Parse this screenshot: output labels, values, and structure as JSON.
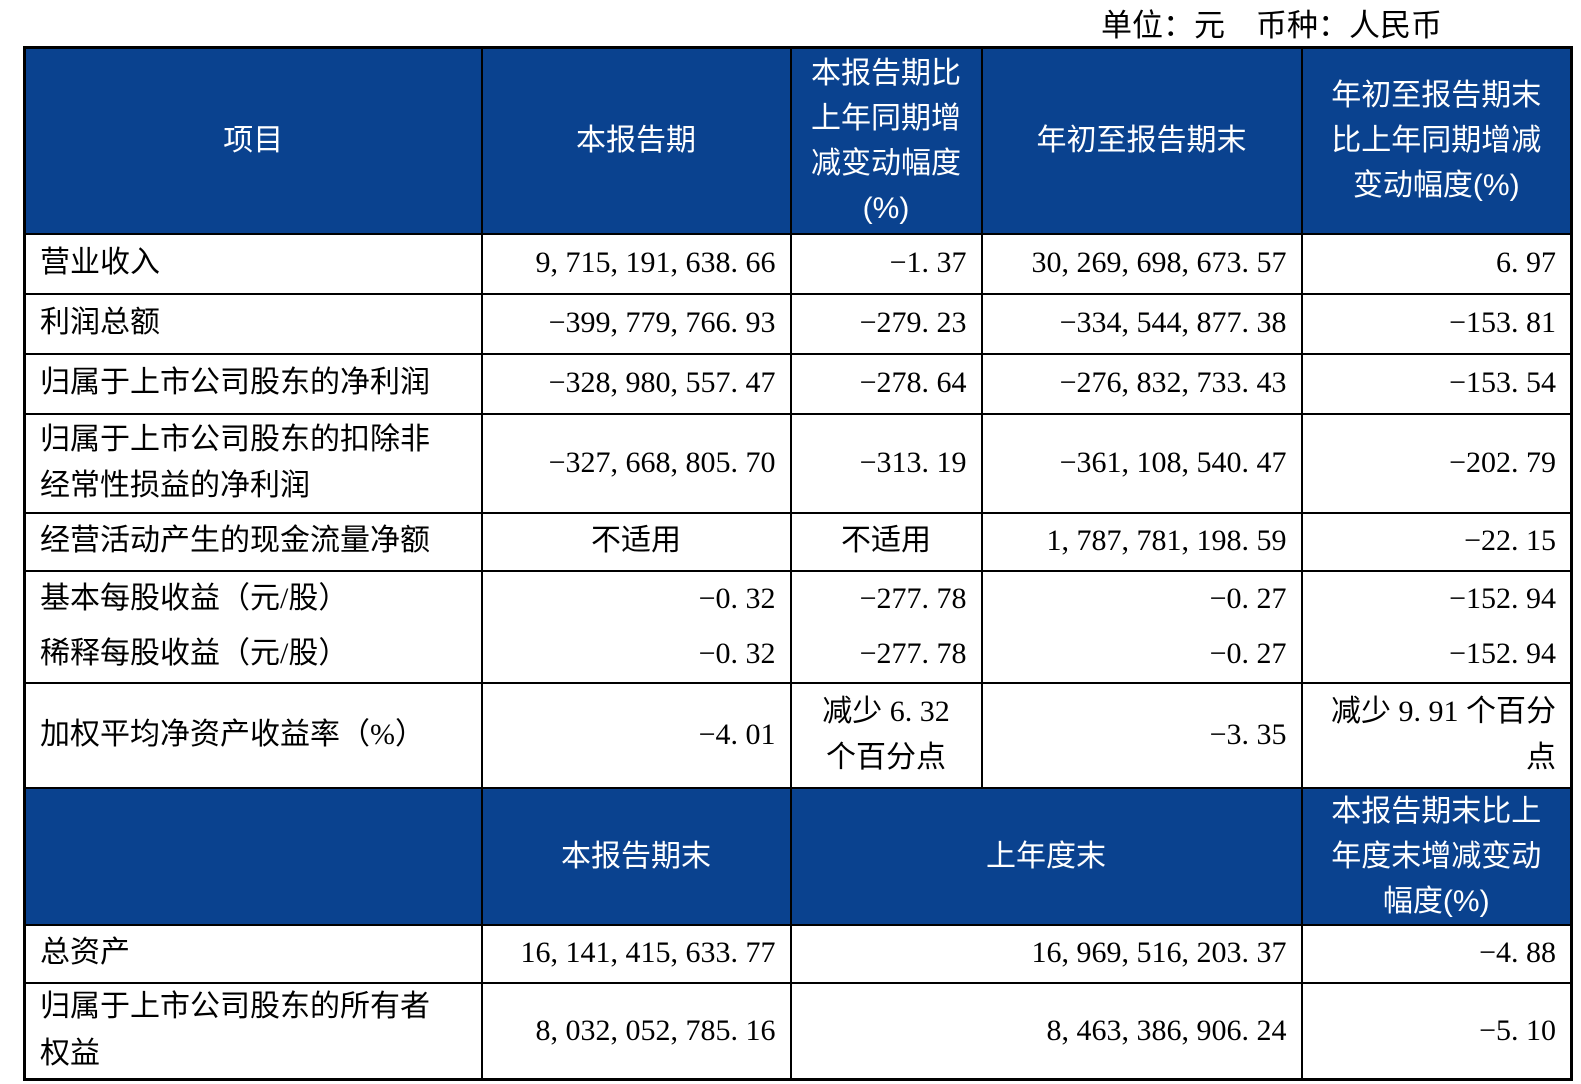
{
  "meta": {
    "unit_label": "单位：元　币种：人民币"
  },
  "colors": {
    "header_bg": "#0A428F",
    "header_text": "#FFFFFF",
    "border": "#000000",
    "body_text": "#000000",
    "page_bg": "#FFFFFF"
  },
  "table1": {
    "headers": {
      "item": "项目",
      "current_period": "本报告期",
      "current_change": "本报告期比\n上年同期增\n减变动幅度\n(%)",
      "ytd": "年初至报告期末",
      "ytd_change": "年初至报告期末\n比上年同期增减\n变动幅度(%)"
    },
    "rows": [
      {
        "label": "营业收入",
        "current": "9, 715, 191, 638. 66",
        "current_change": "−1. 37",
        "ytd": "30, 269, 698, 673. 57",
        "ytd_change": "6. 97"
      },
      {
        "label": "利润总额",
        "current": "−399, 779, 766. 93",
        "current_change": "−279. 23",
        "ytd": "−334, 544, 877. 38",
        "ytd_change": "−153. 81"
      },
      {
        "label": "归属于上市公司股东的净利润",
        "current": "−328, 980, 557. 47",
        "current_change": "−278. 64",
        "ytd": "−276, 832, 733. 43",
        "ytd_change": "−153. 54"
      },
      {
        "label": "归属于上市公司股东的扣除非\n经常性损益的净利润",
        "current": "−327, 668, 805. 70",
        "current_change": "−313. 19",
        "ytd": "−361, 108, 540. 47",
        "ytd_change": "−202. 79"
      },
      {
        "label": "经营活动产生的现金流量净额",
        "current": "不适用",
        "current_change": "不适用",
        "ytd": "1, 787, 781, 198. 59",
        "ytd_change": "−22. 15"
      },
      {
        "label": "基本每股收益（元/股）",
        "current": "−0. 32",
        "current_change": "−277. 78",
        "ytd": "−0. 27",
        "ytd_change": "−152. 94"
      },
      {
        "label": "稀释每股收益（元/股）",
        "current": "−0. 32",
        "current_change": "−277. 78",
        "ytd": "−0. 27",
        "ytd_change": "−152. 94"
      },
      {
        "label": "加权平均净资产收益率（%）",
        "current": "−4. 01",
        "current_change": "减少 6. 32\n个百分点",
        "ytd": "−3. 35",
        "ytd_change": "减少 9. 91 个百分\n点"
      }
    ]
  },
  "table2": {
    "headers": {
      "item": "",
      "period_end": "本报告期末",
      "prior_year_end": "上年度末",
      "change": "本报告期末比上\n年度末增减变动\n幅度(%)"
    },
    "rows": [
      {
        "label": "总资产",
        "period_end": "16, 141, 415, 633. 77",
        "prior_year_end": "16, 969, 516, 203. 37",
        "change": "−4. 88"
      },
      {
        "label": "归属于上市公司股东的所有者\n权益",
        "period_end": "8, 032, 052, 785. 16",
        "prior_year_end": "8, 463, 386, 906. 24",
        "change": "−5. 10"
      }
    ]
  }
}
